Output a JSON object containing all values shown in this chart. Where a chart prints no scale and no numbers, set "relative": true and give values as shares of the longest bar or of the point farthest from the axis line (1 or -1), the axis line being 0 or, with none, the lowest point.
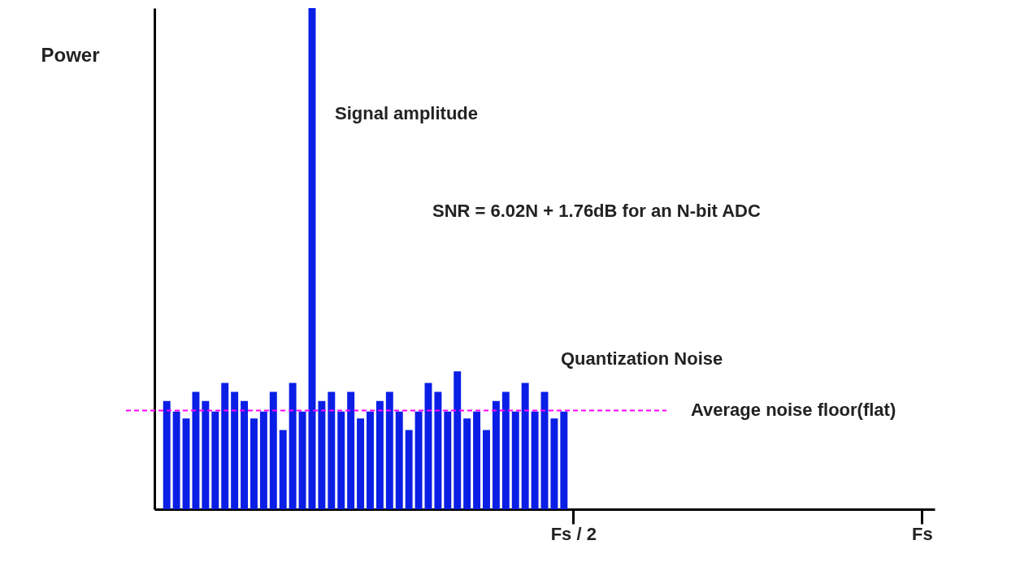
{
  "chart_data": {
    "type": "bar",
    "relative": true,
    "ylabel": "Power",
    "categories": [
      null,
      null,
      null,
      null,
      null,
      null,
      null,
      null,
      null,
      null,
      null,
      null,
      null,
      null,
      null,
      null,
      null,
      null,
      null,
      null,
      null,
      null,
      null,
      null,
      null,
      null,
      null,
      null,
      null,
      null,
      null,
      null,
      null,
      null,
      null,
      null,
      null,
      null,
      null,
      null,
      null,
      null,
      "Fs / 2",
      null,
      null,
      null,
      null,
      null,
      null,
      null,
      null,
      null,
      null,
      null,
      null,
      null,
      null,
      null,
      null,
      null,
      null,
      null,
      null,
      null,
      null,
      null,
      null,
      null,
      null,
      null,
      null,
      null,
      null,
      null,
      null,
      null,
      null,
      null,
      "Fs"
    ],
    "series": [
      {
        "color": "#0a1ee6",
        "values": [
          0.216,
          0.195,
          0.181,
          0.234,
          0.216,
          0.195,
          0.252,
          0.234,
          0.216,
          0.181,
          0.195,
          0.234,
          0.158,
          0.252,
          0.195,
          1,
          0.216,
          0.234,
          0.195,
          0.234,
          0.181,
          0.195,
          0.216,
          0.234,
          0.195,
          0.158,
          0.195,
          0.252,
          0.234,
          0.195,
          0.275,
          0.181,
          0.195,
          0.158,
          0.216,
          0.234,
          0.195,
          0.252,
          0.195,
          0.234,
          0.181,
          0.195,
          null,
          null,
          null,
          null,
          null,
          null,
          null,
          null,
          null,
          null,
          null,
          null,
          null,
          null,
          null,
          null,
          null,
          null,
          null,
          null,
          null,
          null,
          null,
          null,
          null,
          null,
          null,
          null,
          null,
          null,
          null,
          null,
          null,
          null,
          null,
          null,
          null
        ]
      }
    ],
    "ref_lines": [
      {
        "axis": "y",
        "value": 0.197,
        "label": "Average noise floor(flat)",
        "color": "#ff00ff",
        "line_style": "dashed"
      }
    ],
    "annotations": [
      "Signal amplitude",
      "SNR = 6.02N + 1.76dB for an N-bit ADC",
      "Quantization Noise"
    ],
    "grid": false
  }
}
